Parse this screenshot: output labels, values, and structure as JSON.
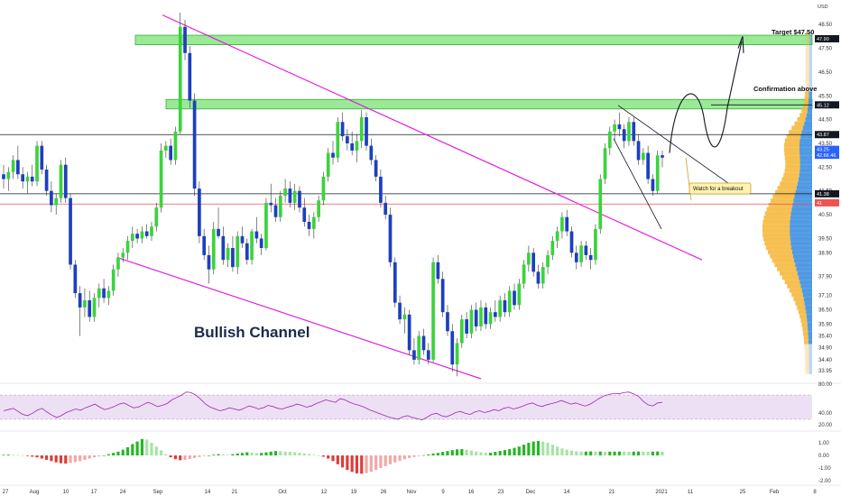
{
  "chart_data": {
    "type": "candlestick",
    "currency": "USD",
    "price_axis": {
      "ticks": [
        "48.50",
        "47.50",
        "46.50",
        "45.50",
        "44.50",
        "43.50",
        "42.50",
        "41.50",
        "40.50",
        "39.50",
        "38.90",
        "37.90",
        "37.10",
        "36.50",
        "35.90",
        "35.40",
        "34.90",
        "34.40",
        "33.95"
      ],
      "range": [
        33.6,
        49.0
      ]
    },
    "price_tags": [
      {
        "label": "47.90",
        "price": 47.9,
        "color": "#131722"
      },
      {
        "label": "45.12",
        "price": 45.12,
        "color": "#131722"
      },
      {
        "label": "43.87",
        "price": 43.87,
        "color": "#131722"
      },
      {
        "label": "43.25",
        "price": 43.25,
        "color": "#2962ff"
      },
      {
        "label": "42.66 46",
        "price": 43.0,
        "color": "#2962ff"
      },
      {
        "label": "41.38",
        "price": 41.38,
        "color": "#131722"
      },
      {
        "label": "41",
        "price": 41.0,
        "color": "#ef5350"
      }
    ],
    "date_labels": [
      "27",
      "Aug",
      "10",
      "17",
      "24",
      "Sep",
      "14",
      "21",
      "Oct",
      "12",
      "19",
      "26",
      "Nov",
      "9",
      "16",
      "23",
      "Dec",
      "14",
      "21",
      "2021",
      "11",
      "25",
      "Feb",
      "8"
    ],
    "candles": [
      [
        42.2,
        42.6,
        41.6,
        42.0
      ],
      [
        42.0,
        42.5,
        41.5,
        42.3
      ],
      [
        42.3,
        43.0,
        42.0,
        42.8
      ],
      [
        42.8,
        43.4,
        42.0,
        42.2
      ],
      [
        42.2,
        42.5,
        41.6,
        41.9
      ],
      [
        41.9,
        42.3,
        41.4,
        42.1
      ],
      [
        42.1,
        42.6,
        41.7,
        41.9
      ],
      [
        41.9,
        43.6,
        41.7,
        43.4
      ],
      [
        43.4,
        43.6,
        42.2,
        42.4
      ],
      [
        42.4,
        42.6,
        41.3,
        41.5
      ],
      [
        41.5,
        41.9,
        40.6,
        40.9
      ],
      [
        40.9,
        41.4,
        40.5,
        41.2
      ],
      [
        41.2,
        42.8,
        41.0,
        42.6
      ],
      [
        42.6,
        42.9,
        41.0,
        41.2
      ],
      [
        41.2,
        41.4,
        38.2,
        38.4
      ],
      [
        38.4,
        38.6,
        37.0,
        37.2
      ],
      [
        37.2,
        37.5,
        35.4,
        36.6
      ],
      [
        36.6,
        37.4,
        36.2,
        36.9
      ],
      [
        36.9,
        37.3,
        36.0,
        36.2
      ],
      [
        36.2,
        37.2,
        36.0,
        37.0
      ],
      [
        37.0,
        37.6,
        36.6,
        37.4
      ],
      [
        37.4,
        37.8,
        36.8,
        37.0
      ],
      [
        37.0,
        37.5,
        36.7,
        37.3
      ],
      [
        37.3,
        38.4,
        37.1,
        38.2
      ],
      [
        38.2,
        38.9,
        37.9,
        38.7
      ],
      [
        38.7,
        39.1,
        38.5,
        38.9
      ],
      [
        38.9,
        39.6,
        38.6,
        39.4
      ],
      [
        39.4,
        40.0,
        39.1,
        39.7
      ],
      [
        39.7,
        39.9,
        39.3,
        39.5
      ],
      [
        39.5,
        40.0,
        39.3,
        39.8
      ],
      [
        39.8,
        40.1,
        39.5,
        39.6
      ],
      [
        39.6,
        40.2,
        39.4,
        40.0
      ],
      [
        40.0,
        41.0,
        39.8,
        40.8
      ],
      [
        40.8,
        43.5,
        40.6,
        43.2
      ],
      [
        43.2,
        43.6,
        42.9,
        43.4
      ],
      [
        43.4,
        43.7,
        42.6,
        42.8
      ],
      [
        42.8,
        44.2,
        42.6,
        44.0
      ],
      [
        44.0,
        49.0,
        43.9,
        48.4
      ],
      [
        48.4,
        48.7,
        47.0,
        47.3
      ],
      [
        47.3,
        47.6,
        45.0,
        45.3
      ],
      [
        45.3,
        45.6,
        41.3,
        41.6
      ],
      [
        41.6,
        41.9,
        39.3,
        39.6
      ],
      [
        39.6,
        39.9,
        38.6,
        38.8
      ],
      [
        38.8,
        39.2,
        37.6,
        38.2
      ],
      [
        38.2,
        40.2,
        38.0,
        39.9
      ],
      [
        39.9,
        40.8,
        39.5,
        39.6
      ],
      [
        39.6,
        40.0,
        38.4,
        38.6
      ],
      [
        38.6,
        39.3,
        38.3,
        39.1
      ],
      [
        39.1,
        39.6,
        38.1,
        38.3
      ],
      [
        38.3,
        39.8,
        38.0,
        39.6
      ],
      [
        39.6,
        40.0,
        39.1,
        39.3
      ],
      [
        39.3,
        39.5,
        38.4,
        38.6
      ],
      [
        38.6,
        39.9,
        38.4,
        39.8
      ],
      [
        39.8,
        40.4,
        39.3,
        39.5
      ],
      [
        39.5,
        39.7,
        38.8,
        39.1
      ],
      [
        39.1,
        41.2,
        39.0,
        41.0
      ],
      [
        41.0,
        41.8,
        40.6,
        40.9
      ],
      [
        40.9,
        41.2,
        40.2,
        40.4
      ],
      [
        40.4,
        41.5,
        40.2,
        41.3
      ],
      [
        41.3,
        42.0,
        41.0,
        41.6
      ],
      [
        41.6,
        41.9,
        40.8,
        41.0
      ],
      [
        41.0,
        41.8,
        40.7,
        41.5
      ],
      [
        41.5,
        41.7,
        40.6,
        40.8
      ],
      [
        40.8,
        41.2,
        40.0,
        40.2
      ],
      [
        40.2,
        40.5,
        39.6,
        39.9
      ],
      [
        39.9,
        40.6,
        39.5,
        40.4
      ],
      [
        40.4,
        41.3,
        40.2,
        41.1
      ],
      [
        41.1,
        42.3,
        40.9,
        42.1
      ],
      [
        42.1,
        43.3,
        41.9,
        43.1
      ],
      [
        43.1,
        43.6,
        42.6,
        42.9
      ],
      [
        42.9,
        44.6,
        42.7,
        44.4
      ],
      [
        44.4,
        44.8,
        43.6,
        43.8
      ],
      [
        43.8,
        44.1,
        43.2,
        43.5
      ],
      [
        43.5,
        44.0,
        43.0,
        43.2
      ],
      [
        43.2,
        43.9,
        42.7,
        43.6
      ],
      [
        43.6,
        44.9,
        43.3,
        44.6
      ],
      [
        44.6,
        44.8,
        43.2,
        43.4
      ],
      [
        43.4,
        43.7,
        42.6,
        42.8
      ],
      [
        42.8,
        43.0,
        41.9,
        42.1
      ],
      [
        42.1,
        42.4,
        40.8,
        41.0
      ],
      [
        41.0,
        41.3,
        40.3,
        40.5
      ],
      [
        40.5,
        40.8,
        38.3,
        38.5
      ],
      [
        38.5,
        38.7,
        36.6,
        36.8
      ],
      [
        36.8,
        37.1,
        35.9,
        36.1
      ],
      [
        36.1,
        36.6,
        35.5,
        36.3
      ],
      [
        36.3,
        36.5,
        34.6,
        34.8
      ],
      [
        34.8,
        35.3,
        34.2,
        34.4
      ],
      [
        34.4,
        35.6,
        34.2,
        35.4
      ],
      [
        35.4,
        35.7,
        34.6,
        34.8
      ],
      [
        34.8,
        35.1,
        34.2,
        34.4
      ],
      [
        34.4,
        38.7,
        34.3,
        38.5
      ],
      [
        38.5,
        38.8,
        37.6,
        37.8
      ],
      [
        37.8,
        38.1,
        36.2,
        36.4
      ],
      [
        36.4,
        36.7,
        35.4,
        35.6
      ],
      [
        35.6,
        35.9,
        33.9,
        34.2
      ],
      [
        34.2,
        35.3,
        33.7,
        35.1
      ],
      [
        35.1,
        36.3,
        34.9,
        36.1
      ],
      [
        36.1,
        36.4,
        35.3,
        35.5
      ],
      [
        35.5,
        36.7,
        35.3,
        36.5
      ],
      [
        36.5,
        36.8,
        35.6,
        35.8
      ],
      [
        35.8,
        36.9,
        35.6,
        36.6
      ],
      [
        36.6,
        36.8,
        35.7,
        35.9
      ],
      [
        35.9,
        36.6,
        35.7,
        36.4
      ],
      [
        36.4,
        36.9,
        36.0,
        36.2
      ],
      [
        36.2,
        37.1,
        36.0,
        36.9
      ],
      [
        36.9,
        37.2,
        36.2,
        36.4
      ],
      [
        36.4,
        37.5,
        36.2,
        37.3
      ],
      [
        37.3,
        37.6,
        36.5,
        36.7
      ],
      [
        36.7,
        37.8,
        36.5,
        37.6
      ],
      [
        37.6,
        38.6,
        37.4,
        38.4
      ],
      [
        38.4,
        39.2,
        38.1,
        38.9
      ],
      [
        38.9,
        39.1,
        37.9,
        38.1
      ],
      [
        38.1,
        38.4,
        37.4,
        37.6
      ],
      [
        37.6,
        38.5,
        37.4,
        38.3
      ],
      [
        38.3,
        39.0,
        38.0,
        38.8
      ],
      [
        38.8,
        39.6,
        38.6,
        39.4
      ],
      [
        39.4,
        40.0,
        39.1,
        39.8
      ],
      [
        39.8,
        40.6,
        39.5,
        40.4
      ],
      [
        40.4,
        40.7,
        39.6,
        39.8
      ],
      [
        39.8,
        40.0,
        38.7,
        38.9
      ],
      [
        38.9,
        39.2,
        38.2,
        38.5
      ],
      [
        38.5,
        39.4,
        38.3,
        39.2
      ],
      [
        39.2,
        39.4,
        38.6,
        38.8
      ],
      [
        38.8,
        39.1,
        38.2,
        38.6
      ],
      [
        38.6,
        40.1,
        38.4,
        39.9
      ],
      [
        39.9,
        42.2,
        39.7,
        42.0
      ],
      [
        42.0,
        43.5,
        41.8,
        43.3
      ],
      [
        43.3,
        44.2,
        43.0,
        44.0
      ],
      [
        44.0,
        44.5,
        43.6,
        44.3
      ],
      [
        44.3,
        44.8,
        43.8,
        44.1
      ],
      [
        44.1,
        44.3,
        43.3,
        43.6
      ],
      [
        43.6,
        44.6,
        43.4,
        44.4
      ],
      [
        44.4,
        44.6,
        43.4,
        43.6
      ],
      [
        43.6,
        43.9,
        42.6,
        42.8
      ],
      [
        42.8,
        43.3,
        42.6,
        43.1
      ],
      [
        43.1,
        43.4,
        41.8,
        42.0
      ],
      [
        42.0,
        42.2,
        41.3,
        41.5
      ],
      [
        41.5,
        43.2,
        41.4,
        43.0
      ],
      [
        43.0,
        43.2,
        42.5,
        42.9
      ]
    ],
    "annotations": {
      "title": "Bullish Channel",
      "target": "Target $47.50",
      "confirmation": "Confirmation above",
      "callout": "Watch for a breakout"
    },
    "rsi": {
      "ticks": [
        "80.00",
        "40.00",
        "20.00"
      ],
      "values": [
        44,
        46,
        48,
        43,
        38,
        36,
        40,
        45,
        48,
        42,
        37,
        33,
        36,
        41,
        44,
        47,
        45,
        49,
        52,
        55,
        50,
        46,
        48,
        51,
        55,
        57,
        53,
        49,
        50,
        54,
        58,
        55,
        51,
        53,
        56,
        62,
        66,
        70,
        75,
        74,
        70,
        63,
        55,
        50,
        47,
        44,
        46,
        49,
        47,
        45,
        48,
        52,
        50,
        47,
        49,
        53,
        51,
        48,
        47,
        50,
        52,
        55,
        53,
        50,
        52,
        56,
        59,
        62,
        60,
        58,
        64,
        62,
        58,
        55,
        53,
        50,
        46,
        43,
        40,
        37,
        34,
        32,
        30,
        34,
        36,
        33,
        31,
        29,
        33,
        38,
        40,
        36,
        34,
        37,
        41,
        43,
        40,
        38,
        42,
        44,
        41,
        43,
        46,
        44,
        48,
        50,
        47,
        49,
        52,
        55,
        57,
        53,
        51,
        54,
        56,
        58,
        61,
        58,
        55,
        57,
        54,
        52,
        55,
        60,
        65,
        69,
        71,
        73,
        72,
        74,
        75,
        72,
        68,
        60,
        54,
        52,
        57,
        58
      ]
    },
    "macd": {
      "ticks": [
        "1.00",
        "0.00",
        "-1.00",
        "-2.00"
      ],
      "values": [
        0.05,
        0.06,
        0.05,
        0.03,
        0.0,
        -0.05,
        -0.1,
        -0.16,
        -0.25,
        -0.35,
        -0.45,
        -0.55,
        -0.62,
        -0.65,
        -0.6,
        -0.52,
        -0.45,
        -0.35,
        -0.25,
        -0.15,
        -0.08,
        0.0,
        0.1,
        0.2,
        0.3,
        0.45,
        0.65,
        0.9,
        1.1,
        1.3,
        1.25,
        1.0,
        0.7,
        0.4,
        0.1,
        -0.15,
        -0.3,
        -0.38,
        -0.35,
        -0.28,
        -0.2,
        -0.12,
        -0.05,
        0.0,
        0.06,
        0.1,
        0.08,
        0.05,
        0.1,
        0.15,
        0.2,
        0.25,
        0.22,
        0.18,
        0.2,
        0.24,
        0.3,
        0.35,
        0.33,
        0.3,
        0.28,
        0.25,
        0.2,
        0.15,
        0.1,
        0.05,
        0.0,
        -0.1,
        -0.25,
        -0.45,
        -0.7,
        -0.95,
        -1.15,
        -1.3,
        -1.42,
        -1.45,
        -1.4,
        -1.3,
        -1.15,
        -1.0,
        -0.85,
        -0.7,
        -0.55,
        -0.42,
        -0.3,
        -0.2,
        -0.12,
        -0.05,
        0.02,
        0.08,
        0.15,
        0.2,
        0.28,
        0.35,
        0.42,
        0.48,
        0.5,
        0.45,
        0.38,
        0.3,
        0.25,
        0.2,
        0.22,
        0.28,
        0.35,
        0.42,
        0.5,
        0.6,
        0.7,
        0.85,
        1.0,
        1.1,
        1.15,
        1.1,
        1.0,
        0.85,
        0.7,
        0.55,
        0.45,
        0.38,
        0.33,
        0.3,
        0.3,
        0.32,
        0.3,
        0.31,
        0.29,
        0.3,
        0.3,
        0.31,
        0.3,
        0.29,
        0.3,
        0.31,
        0.3,
        0.29,
        0.3,
        0.31,
        0.3
      ]
    }
  }
}
